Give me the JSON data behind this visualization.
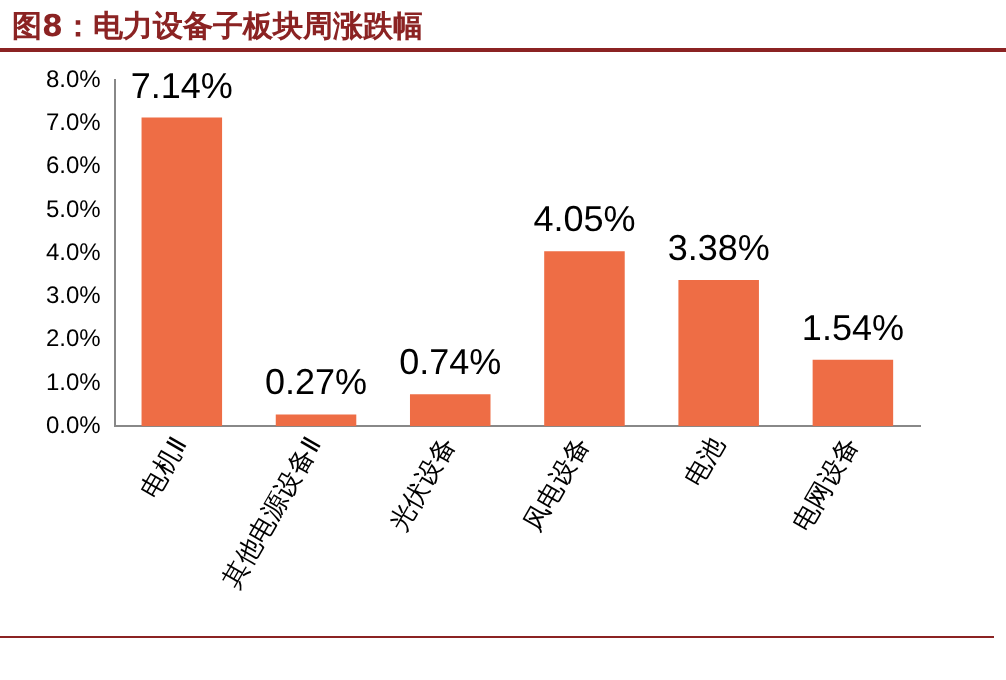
{
  "chart_data": {
    "type": "bar",
    "title": "图8：电力设备子板块周涨跌幅",
    "categories": [
      "电机Ⅱ",
      "其他电源设备Ⅱ",
      "光伏设备",
      "风电设备",
      "电池",
      "电网设备"
    ],
    "values": [
      7.14,
      0.27,
      0.74,
      4.05,
      3.38,
      1.54
    ],
    "value_labels": [
      "7.14%",
      "0.27%",
      "0.74%",
      "4.05%",
      "3.38%",
      "1.54%"
    ],
    "color": "#ee6d45",
    "ylim": [
      0,
      8
    ],
    "yticks": [
      {
        "value": 0,
        "label": "0.0%"
      },
      {
        "value": 1,
        "label": "1.0%"
      },
      {
        "value": 2,
        "label": "2.0%"
      },
      {
        "value": 3,
        "label": "3.0%"
      },
      {
        "value": 4,
        "label": "4.0%"
      },
      {
        "value": 5,
        "label": "5.0%"
      },
      {
        "value": 6,
        "label": "6.0%"
      },
      {
        "value": 7,
        "label": "7.0%"
      },
      {
        "value": 8,
        "label": "8.0%"
      }
    ],
    "grid": false,
    "legend": false
  }
}
